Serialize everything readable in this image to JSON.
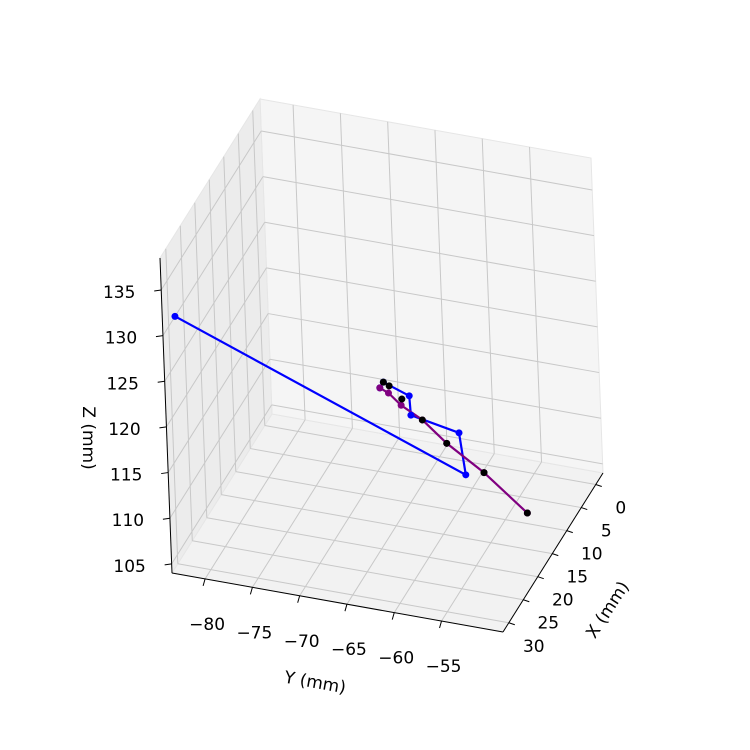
{
  "chart_data": {
    "type": "line3d",
    "xlabel": "X (mm)",
    "ylabel": "Y (mm)",
    "zlabel": "Z (mm)",
    "xlim": [
      -2.5,
      32
    ],
    "ylim": [
      -83.5,
      -48.5
    ],
    "zlim": [
      104,
      138.5
    ],
    "xticks": [
      0,
      5,
      10,
      15,
      20,
      25,
      30
    ],
    "yticks": [
      {
        "value": -80,
        "label": "−80"
      },
      {
        "value": -75,
        "label": "−75"
      },
      {
        "value": -70,
        "label": "−70"
      },
      {
        "value": -65,
        "label": "−65"
      },
      {
        "value": -60,
        "label": "−60"
      },
      {
        "value": -55,
        "label": "−55"
      }
    ],
    "zticks": [
      105,
      110,
      115,
      120,
      125,
      130,
      135
    ],
    "grid": true,
    "series": [
      {
        "color": "#0000ff",
        "line": true,
        "marker": true,
        "x": [
          30.3,
          11.3,
          11.3,
          11.3,
          11.3,
          11.3,
          11.3
        ],
        "y": [
          -82.7,
          -58.6,
          -59.15,
          -64.2,
          -64.3,
          -67.0,
          -67.4
        ],
        "z": [
          131.4,
          108.9,
          113.4,
          114.4,
          116.5,
          117.5,
          116.8
        ]
      },
      {
        "color": "#800080",
        "line": true,
        "marker": true,
        "x": [
          11.3,
          11.3,
          11.3,
          11.3,
          11.3,
          11.3,
          11.3
        ],
        "y": [
          -67.4,
          -66.5,
          -65.2,
          -63.0,
          -60.5,
          -56.65,
          -52.2
        ],
        "z": [
          116.8,
          116.4,
          115.3,
          114.1,
          112.0,
          109.5,
          105.9
        ]
      },
      {
        "color": "#000000",
        "line": false,
        "marker": true,
        "x": [
          11.3,
          11.3,
          11.3,
          11.3,
          11.3,
          11.3,
          11.3
        ],
        "y": [
          -67.0,
          -66.4,
          -65.1,
          -63.0,
          -60.5,
          -56.65,
          -52.2
        ],
        "z": [
          117.5,
          117.2,
          116.0,
          114.1,
          112.0,
          109.5,
          105.9
        ]
      }
    ]
  }
}
